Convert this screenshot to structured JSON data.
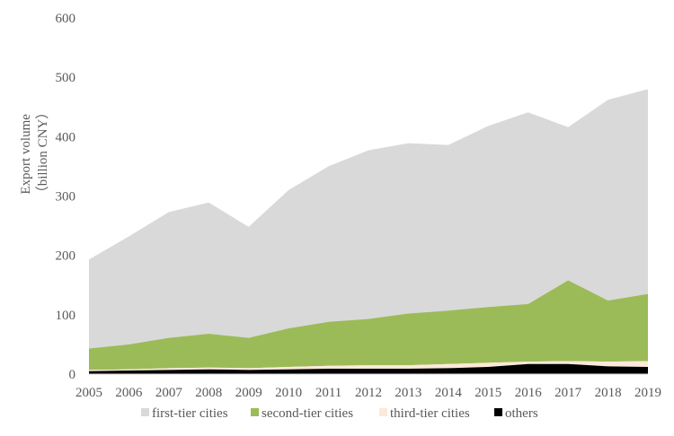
{
  "chart_data": {
    "type": "area",
    "stacked": true,
    "x": [
      "2005",
      "2006",
      "2007",
      "2008",
      "2009",
      "2010",
      "2011",
      "2012",
      "2013",
      "2014",
      "2015",
      "2016",
      "2017",
      "2018",
      "2019"
    ],
    "ylabel_line1": "Export volume",
    "ylabel_line2": "（billion CNY）",
    "ylim": [
      0,
      600
    ],
    "yticks": [
      "0",
      "100",
      "200",
      "300",
      "400",
      "500",
      "600"
    ],
    "grid": false,
    "legend_position": "bottom",
    "series": [
      {
        "name": "others",
        "color": "#000000",
        "values": [
          5,
          6,
          7,
          8,
          7,
          8,
          9,
          9,
          9,
          10,
          12,
          17,
          17,
          13,
          12
        ]
      },
      {
        "name": "third-tier cities",
        "color": "#fde9d9",
        "values": [
          2,
          2,
          3,
          3,
          3,
          4,
          5,
          6,
          6,
          7,
          7,
          4,
          5,
          8,
          10
        ]
      },
      {
        "name": "second-tier cities",
        "color": "#9bbb59",
        "values": [
          36,
          42,
          51,
          57,
          51,
          65,
          74,
          78,
          87,
          90,
          94,
          97,
          136,
          103,
          113
        ]
      },
      {
        "name": "first-tier cities",
        "color": "#d9d9d9",
        "values": [
          150,
          182,
          212,
          221,
          187,
          233,
          262,
          284,
          287,
          279,
          305,
          323,
          258,
          338,
          345
        ]
      }
    ],
    "legend_order": [
      "first-tier cities",
      "second-tier cities",
      "third-tier cities",
      "others"
    ]
  }
}
